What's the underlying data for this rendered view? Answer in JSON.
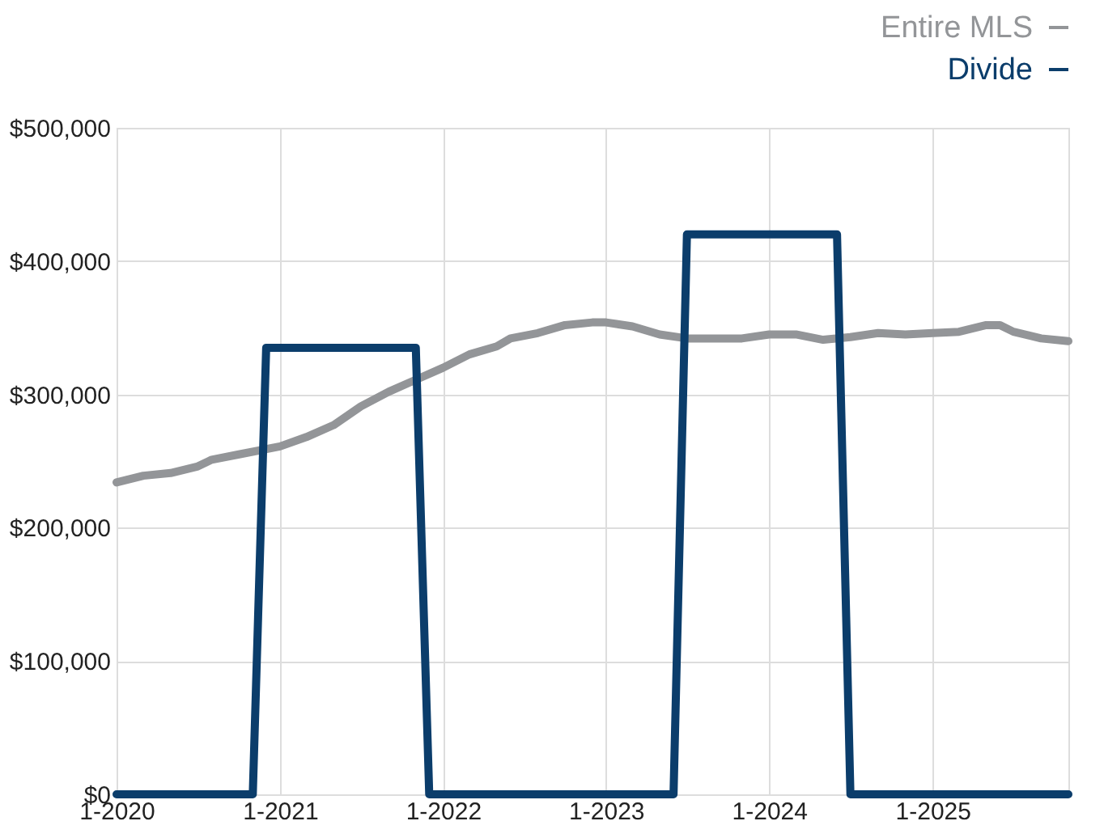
{
  "chart_data": {
    "type": "line",
    "legend": "top right",
    "grid": true,
    "line_style": "solid",
    "marker": "none",
    "xlim": [
      "2020-01",
      "2025-11"
    ],
    "xticks": [
      {
        "value": "2020-01",
        "label": "1-2020"
      },
      {
        "value": "2021-01",
        "label": "1-2021"
      },
      {
        "value": "2022-01",
        "label": "1-2022"
      },
      {
        "value": "2023-01",
        "label": "1-2023"
      },
      {
        "value": "2024-01",
        "label": "1-2024"
      },
      {
        "value": "2025-01",
        "label": "1-2025"
      }
    ],
    "ylim": [
      0,
      500000
    ],
    "yticks": [
      {
        "value": 0,
        "label": "$0"
      },
      {
        "value": 100000,
        "label": "$100,000"
      },
      {
        "value": 200000,
        "label": "$200,000"
      },
      {
        "value": 300000,
        "label": "$300,000"
      },
      {
        "value": 400000,
        "label": "$400,000"
      },
      {
        "value": 500000,
        "label": "$500,000"
      }
    ],
    "series": [
      {
        "name": "Entire MLS",
        "color": "#939598",
        "x": [
          "2020-01",
          "2020-03",
          "2020-05",
          "2020-07",
          "2020-08",
          "2020-10",
          "2021-01",
          "2021-03",
          "2021-05",
          "2021-07",
          "2021-09",
          "2021-11",
          "2022-01",
          "2022-03",
          "2022-05",
          "2022-06",
          "2022-08",
          "2022-10",
          "2022-12",
          "2023-01",
          "2023-03",
          "2023-05",
          "2023-07",
          "2023-09",
          "2023-11",
          "2024-01",
          "2024-03",
          "2024-05",
          "2024-07",
          "2024-09",
          "2024-11",
          "2025-01",
          "2025-03",
          "2025-05",
          "2025-06",
          "2025-07",
          "2025-09",
          "2025-11"
        ],
        "values": [
          234000,
          239000,
          241000,
          246000,
          251000,
          255000,
          261000,
          268000,
          277000,
          291000,
          302000,
          311000,
          320000,
          330000,
          336000,
          342000,
          346000,
          352000,
          354000,
          354000,
          351000,
          345000,
          342000,
          342000,
          342000,
          345000,
          345000,
          341000,
          343000,
          346000,
          345000,
          346000,
          347000,
          352000,
          352000,
          347000,
          342000,
          340000
        ]
      },
      {
        "name": "Divide",
        "color": "#0b3d6b",
        "x": [
          "2020-01",
          "2020-11",
          "2020-12",
          "2021-11",
          "2021-12",
          "2023-06",
          "2023-07",
          "2024-06",
          "2024-07",
          "2025-11"
        ],
        "values": [
          0,
          0,
          335000,
          335000,
          0,
          0,
          420000,
          420000,
          0,
          0
        ]
      }
    ]
  }
}
